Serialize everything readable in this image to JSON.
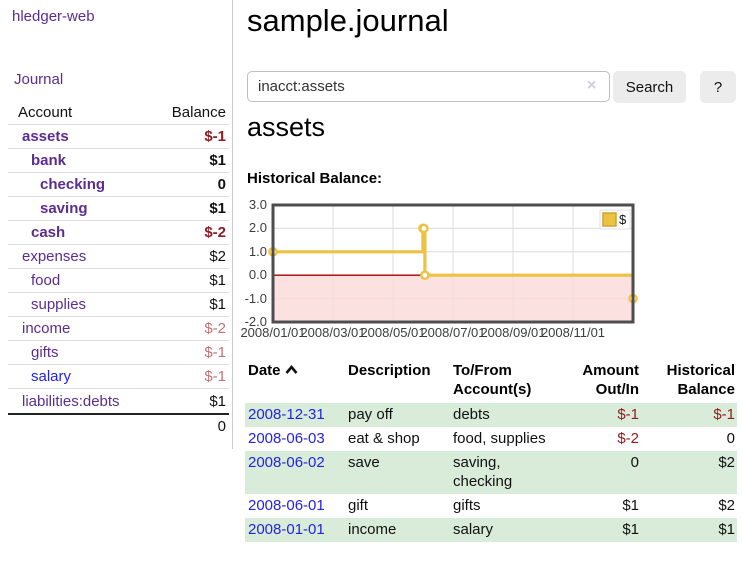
{
  "colors": {
    "accent_purple": "#5b2d90",
    "link_blue": "#2323e2",
    "negative_dark": "#941a22",
    "negative_soft": "#c17474",
    "row_green": "#d9ecd9",
    "chart_gold": "#edc240",
    "chart_pink": "#fbdada",
    "chart_zero_line": "#a40000"
  },
  "sidebar": {
    "brand": "hledger-web",
    "journal_link": "Journal",
    "accounts_table": {
      "header_account": "Account",
      "header_balance": "Balance",
      "rows": [
        {
          "name": "assets",
          "balance": "$-1",
          "indent": 1,
          "matched": true,
          "neg": "strong"
        },
        {
          "name": "bank",
          "balance": "$1",
          "indent": 2,
          "matched": true
        },
        {
          "name": "checking",
          "balance": "0",
          "indent": 3,
          "matched": true
        },
        {
          "name": "saving",
          "balance": "$1",
          "indent": 3,
          "matched": true
        },
        {
          "name": "cash",
          "balance": "$-2",
          "indent": 2,
          "matched": true,
          "neg": "strong"
        },
        {
          "name": "expenses",
          "balance": "$2",
          "indent": 1
        },
        {
          "name": "food",
          "balance": "$1",
          "indent": 2
        },
        {
          "name": "supplies",
          "balance": "$1",
          "indent": 2
        },
        {
          "name": "income",
          "balance": "$-2",
          "indent": 1,
          "neg": "soft"
        },
        {
          "name": "gifts",
          "balance": "$-1",
          "indent": 2,
          "neg": "soft"
        },
        {
          "name": "salary",
          "balance": "$-1",
          "indent": 2,
          "neg": "soft",
          "blue_link": true
        },
        {
          "name": "liabilities:debts",
          "balance": "$1",
          "indent": 1
        }
      ],
      "total": "0"
    }
  },
  "header": {
    "title": "sample.journal"
  },
  "search": {
    "value": "inacct:assets",
    "clear_icon": "×",
    "search_button": "Search",
    "help_button": "?"
  },
  "account_view": {
    "heading": "assets",
    "chart_title": "Historical Balance:"
  },
  "chart_data": {
    "type": "line",
    "step": true,
    "title": "Historical Balance:",
    "series": [
      {
        "name": "$",
        "points": [
          {
            "date": "2008-01-01",
            "value": 1
          },
          {
            "date": "2008-06-01",
            "value": 2
          },
          {
            "date": "2008-06-02",
            "value": 2
          },
          {
            "date": "2008-06-03",
            "value": 0
          },
          {
            "date": "2008-12-31",
            "value": -1
          }
        ]
      }
    ],
    "ylim": [
      -2.0,
      3.0
    ],
    "yticks": [
      "3.0",
      "2.0",
      "1.0",
      "0.0",
      "-1.0",
      "-2.0"
    ],
    "xticks": [
      "2008/01/01",
      "2008/03/01",
      "2008/05/01",
      "2008/07/01",
      "2008/09/01",
      "2008/11/01"
    ],
    "legend": "$",
    "legend_position": "top-right",
    "grid": true,
    "negative_region_shaded": true
  },
  "register_table": {
    "headers": {
      "date": "Date",
      "description": "Description",
      "accounts": "To/From Account(s)",
      "amount": "Amount Out/In",
      "balance": "Historical Balance"
    },
    "sort": "ascending",
    "rows": [
      {
        "date": "2008-12-31",
        "description": "pay off",
        "accounts": "debts",
        "amount": "$-1",
        "amount_neg": true,
        "balance": "$-1",
        "balance_neg": true,
        "highlighted": true
      },
      {
        "date": "2008-06-03",
        "description": "eat & shop",
        "accounts": "food, supplies",
        "amount": "$-2",
        "amount_neg": true,
        "balance": "0",
        "balance_neg": false,
        "highlighted": false
      },
      {
        "date": "2008-06-02",
        "description": "save",
        "accounts": "saving, checking",
        "amount": "0",
        "amount_neg": false,
        "balance": "$2",
        "balance_neg": false,
        "highlighted": true
      },
      {
        "date": "2008-06-01",
        "description": "gift",
        "accounts": "gifts",
        "amount": "$1",
        "amount_neg": false,
        "balance": "$2",
        "balance_neg": false,
        "highlighted": false
      },
      {
        "date": "2008-01-01",
        "description": "income",
        "accounts": "salary",
        "amount": "$1",
        "amount_neg": false,
        "balance": "$1",
        "balance_neg": false,
        "highlighted": true
      }
    ]
  }
}
